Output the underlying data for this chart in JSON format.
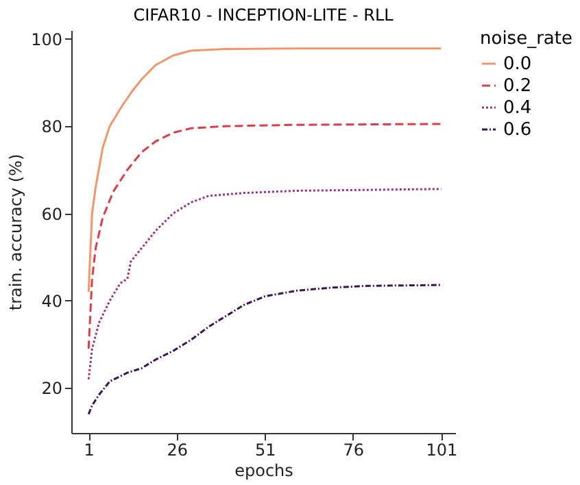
{
  "chart_data": {
    "type": "line",
    "title": "CIFAR10 - INCEPTION-LITE - RLL",
    "xlabel": "epochs",
    "ylabel": "train. accuracy (%)",
    "legend_title": "noise_rate",
    "xlim": [
      -3.9,
      105
    ],
    "ylim": [
      9.7,
      102
    ],
    "xticks": [
      1,
      26,
      51,
      76,
      101
    ],
    "yticks": [
      20,
      40,
      60,
      80,
      100
    ],
    "grid": false,
    "legend": "right",
    "series": [
      {
        "name": "0.0",
        "color": "#f3956a",
        "line_style": "solid",
        "x": [
          1,
          2,
          3,
          5,
          7,
          10,
          13,
          16,
          20,
          25,
          30,
          40,
          60,
          101
        ],
        "values": [
          42,
          60,
          66,
          75,
          80,
          84,
          87.6,
          90.7,
          94,
          96.2,
          97.3,
          97.7,
          97.8,
          97.8
        ]
      },
      {
        "name": "0.2",
        "color": "#de3c46",
        "line_style": "dashed",
        "x": [
          1,
          2,
          3,
          5,
          8,
          12,
          16,
          20,
          25,
          30,
          40,
          60,
          101
        ],
        "values": [
          29,
          45,
          52,
          59,
          65,
          70,
          74,
          76.5,
          78.5,
          79.5,
          80,
          80.3,
          80.5
        ]
      },
      {
        "name": "0.4",
        "color": "#a1307a",
        "line_style": "dotted",
        "x": [
          1,
          2,
          4,
          7,
          10,
          12,
          13,
          16,
          20,
          25,
          30,
          35,
          45,
          60,
          101
        ],
        "values": [
          22,
          29,
          35,
          40,
          44,
          45,
          49,
          52,
          56,
          60,
          62.5,
          64,
          64.7,
          65.2,
          65.6
        ]
      },
      {
        "name": "0.6",
        "color": "#3b1450",
        "line_style": "dashdot",
        "x": [
          1,
          2,
          4,
          7,
          12,
          16,
          20,
          25,
          30,
          35,
          40,
          45,
          51,
          60,
          70,
          80,
          101
        ],
        "values": [
          14,
          16,
          18.5,
          21.5,
          23.5,
          24.5,
          26.5,
          28.5,
          31,
          34,
          36.5,
          39,
          41,
          42.3,
          43,
          43.4,
          43.6
        ]
      }
    ]
  }
}
